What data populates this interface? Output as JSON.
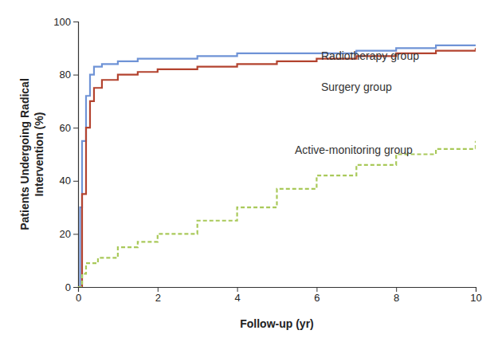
{
  "chart_data": {
    "type": "line",
    "x_label": "Follow-up (yr)",
    "y_label": [
      "Patients Undergoing Radical",
      "Intervention (%)"
    ],
    "xlim": [
      0,
      10
    ],
    "ylim": [
      0,
      100
    ],
    "xticks": [
      0,
      2,
      4,
      6,
      8,
      10
    ],
    "yticks": [
      0,
      20,
      40,
      60,
      80,
      100
    ],
    "grid": false,
    "series": [
      {
        "name": "Radiotherapy group",
        "color": "#6f93d6",
        "line_style": "solid",
        "x": [
          0,
          0.05,
          0.1,
          0.2,
          0.3,
          0.4,
          0.6,
          1,
          1.5,
          2,
          3,
          4,
          5,
          6,
          7,
          8,
          9,
          10
        ],
        "values": [
          0,
          30,
          55,
          72,
          80,
          83,
          84,
          85,
          86,
          86,
          87,
          88,
          88,
          88,
          89,
          90,
          91,
          91
        ]
      },
      {
        "name": "Surgery group",
        "color": "#b3432f",
        "line_style": "solid",
        "x": [
          0,
          0.1,
          0.2,
          0.3,
          0.4,
          0.6,
          0.9,
          1,
          1.5,
          2,
          3,
          4,
          5,
          6,
          7,
          8,
          9,
          10
        ],
        "values": [
          0,
          35,
          60,
          70,
          75,
          78,
          78,
          80,
          81,
          82,
          83,
          84,
          85,
          86,
          87,
          88,
          89,
          90
        ]
      },
      {
        "name": "Active-monitoring group",
        "color": "#a9c95a",
        "line_style": "dashed",
        "x": [
          0,
          0.1,
          0.2,
          0.5,
          1,
          1.5,
          2,
          3,
          4,
          5,
          6,
          7,
          8,
          9,
          10
        ],
        "values": [
          0,
          5,
          9,
          11,
          15,
          17,
          20,
          25,
          30,
          37,
          42,
          46,
          50,
          52,
          55
        ]
      }
    ]
  }
}
